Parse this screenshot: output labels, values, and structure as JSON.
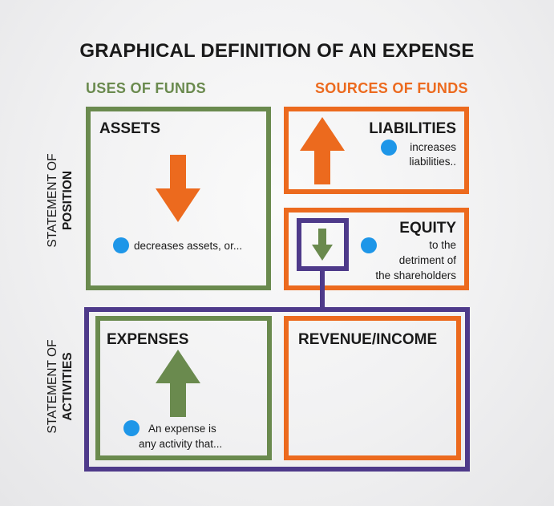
{
  "title": "GRAPHICAL DEFINITION OF AN EXPENSE",
  "columns": {
    "uses": "USES OF FUNDS",
    "sources": "SOURCES OF FUNDS"
  },
  "rows": {
    "position": {
      "line1": "STATEMENT OF",
      "line2": "POSITION"
    },
    "activities": {
      "line1": "STATEMENT OF",
      "line2": "ACTIVITIES"
    }
  },
  "boxes": {
    "assets": {
      "label": "ASSETS",
      "note": "decreases assets, or...",
      "arrow": "down"
    },
    "liabilities": {
      "label": "LIABILITIES",
      "note_line1": "increases",
      "note_line2": "liabilities..",
      "arrow": "up"
    },
    "equity": {
      "label": "EQUITY",
      "note_line1": "to the",
      "note_line2": "detriment  of",
      "note_line3": "the shareholders",
      "arrow": "down"
    },
    "expenses": {
      "label": "EXPENSES",
      "note_line1": "An expense is",
      "note_line2": "any activity that...",
      "arrow": "up"
    },
    "revenue": {
      "label": "REVENUE/INCOME"
    }
  },
  "colors": {
    "uses": "#6a8a4e",
    "sources": "#ec6a1e",
    "activities": "#4e3a8a",
    "bullet": "#1e96e8"
  }
}
